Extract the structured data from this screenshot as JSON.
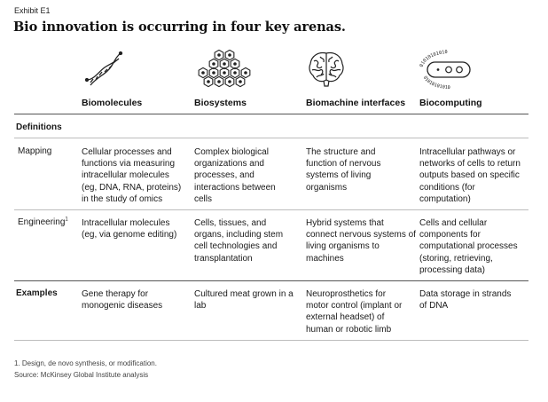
{
  "exhibit_label": "Exhibit E1",
  "title": "Bio innovation is occurring in four key arenas.",
  "columns": [
    {
      "label": "Biomolecules",
      "icon": "dna-helix-icon"
    },
    {
      "label": "Biosystems",
      "icon": "hexagon-cells-icon"
    },
    {
      "label": "Biomachine interfaces",
      "icon": "brain-icon"
    },
    {
      "label": "Biocomputing",
      "icon": "binary-capsule-icon"
    }
  ],
  "definitions_label": "Definitions",
  "rows": {
    "mapping": {
      "label": "Mapping",
      "cells": [
        "Cellular processes and functions via measuring intracellular molecules (eg, DNA, RNA, proteins) in the study of omics",
        "Complex biological organizations and processes, and interactions between cells",
        "The structure and function of nervous systems of living organisms",
        "Intracellular pathways or networks of cells to return outputs based on specific conditions (for computation)"
      ]
    },
    "engineering": {
      "label": "Engineering",
      "footnote_marker": "1",
      "cells": [
        "Intracellular molecules (eg, via genome editing)",
        "Cells, tissues, and organs, including stem cell technologies and transplantation",
        "Hybrid systems that connect nervous systems of living organisms to machines",
        "Cells and cellular components for computational processes (storing, retrieving, processing data)"
      ]
    },
    "examples": {
      "label": "Examples",
      "cells": [
        "Gene therapy for monogenic diseases",
        "Cultured meat grown in a lab",
        "Neuroprosthetics for motor control (implant or external headset) of human or robotic limb",
        "Data storage in strands of DNA"
      ]
    }
  },
  "footnotes": {
    "note1": "1. Design, de novo synthesis, or modification.",
    "source": "Source: McKinsey Global Institute analysis"
  },
  "icon_binary_digits": "01010101010",
  "colors": {
    "text": "#1a1a1a",
    "rule": "#555555",
    "rule_light": "#bdbdbd"
  }
}
